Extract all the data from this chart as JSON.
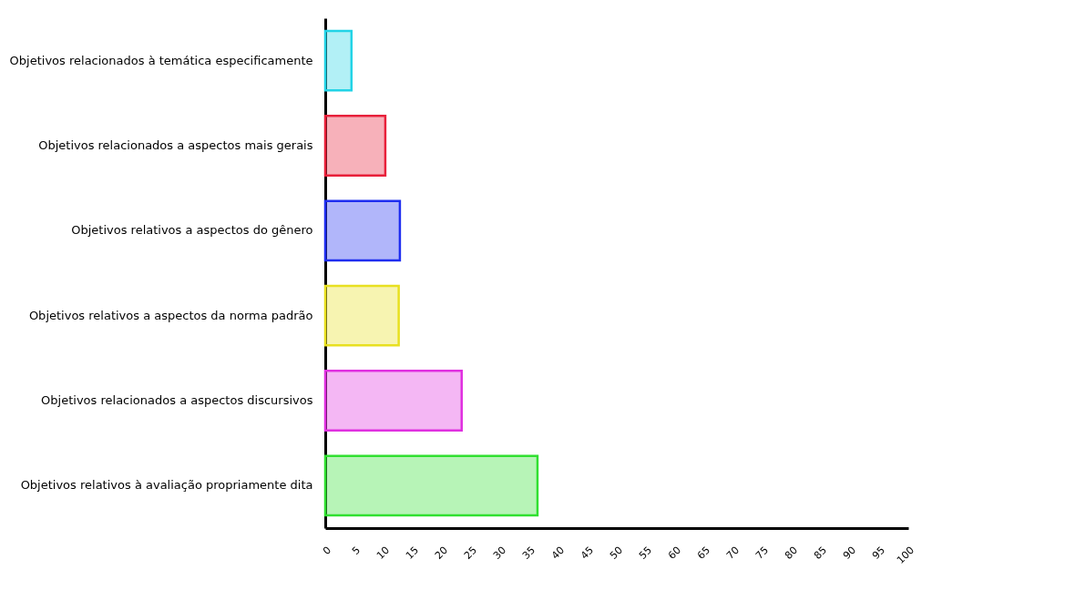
{
  "chart_data": {
    "type": "bar",
    "orientation": "horizontal",
    "categories": [
      "Objetivos relacionados à temática especificamente",
      "Objetivos relacionados a aspectos mais gerais",
      "Objetivos relativos a aspectos do gênero",
      "Objetivos relativos a aspectos da norma padrão",
      "Objetivos relacionados a aspectos discursivos",
      "Objetivos relativos à avaliação propriamente dita"
    ],
    "values": [
      4.5,
      10.3,
      12.8,
      12.6,
      23.4,
      36.4
    ],
    "colors": [
      "#22d3e6",
      "#e8203a",
      "#1f2ef0",
      "#e8e020",
      "#e030e0",
      "#30e030"
    ],
    "xlim": [
      0,
      100
    ],
    "xticks": [
      0,
      5,
      10,
      15,
      20,
      25,
      30,
      35,
      40,
      45,
      50,
      55,
      60,
      65,
      70,
      75,
      80,
      85,
      90,
      95,
      100
    ],
    "grid": false
  }
}
